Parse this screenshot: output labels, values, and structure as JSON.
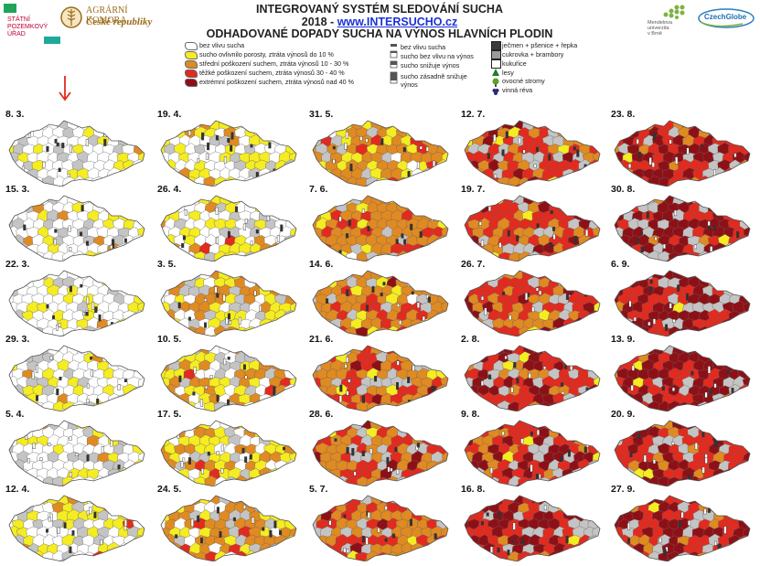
{
  "header": {
    "org1": {
      "lines": [
        "STÁTNÍ",
        "POZEMKOVÝ",
        "ÚŘAD"
      ]
    },
    "org2": {
      "line1": "AGRÁRNÍ KOMORA",
      "line2": "České republiky"
    },
    "title_line1": "INTEGROVANÝ SYSTÉM SLEDOVÁNÍ SUCHA",
    "title_year": "2018 - ",
    "title_url": "www.INTERSUCHO.cz",
    "subtitle": "ODHADOVANÉ DOPADY SUCHA NA VÝNOS HLAVNÍCH PLODIN",
    "org3": {
      "lines": [
        "Mendelova",
        "univerzita",
        "v Brně"
      ]
    },
    "org4": {
      "label": "CzechGlobe"
    }
  },
  "colors": {
    "none": "#ffffff",
    "light": "#f5ec22",
    "medium": "#e08a22",
    "heavy": "#e32a1e",
    "extreme": "#8e1017",
    "other": "#c4c4c4",
    "url": "#1a32d8"
  },
  "legend": {
    "impact": [
      {
        "label": "bez vlivu sucha",
        "color": "#ffffff"
      },
      {
        "label": "sucho ovlivnilo porosty, ztráta výnosů do 10 %",
        "color": "#f5ec22"
      },
      {
        "label": "střední poškození suchem, ztráta výnosů 10 - 30 %",
        "color": "#e08a22"
      },
      {
        "label": "těžké poškození suchem, ztráta výnosů 30 - 40 %",
        "color": "#e32a1e"
      },
      {
        "label": "extrémní poškození suchem, ztráta výnosů nad 40 %",
        "color": "#8e1017"
      }
    ],
    "bars": [
      "bez vlivu sucha",
      "sucho bez vlivu na výnos",
      "sucho snižuje výnos",
      "sucho zásadně snižuje",
      "výnos"
    ],
    "crops": [
      "ječmen + pšenice + řepka",
      "cukrovka + brambory",
      "kukuřice"
    ],
    "symbols": [
      "lesy",
      "ovocné stromy",
      "vinná réva"
    ]
  },
  "maps": [
    {
      "date": "8. 3.",
      "level": 0
    },
    {
      "date": "19. 4.",
      "level": 1
    },
    {
      "date": "31. 5.",
      "level": 3
    },
    {
      "date": "12. 7.",
      "level": 6
    },
    {
      "date": "23. 8.",
      "level": 7
    },
    {
      "date": "15. 3.",
      "level": 0
    },
    {
      "date": "26. 4.",
      "level": 1
    },
    {
      "date": "7. 6.",
      "level": 4
    },
    {
      "date": "19. 7.",
      "level": 6
    },
    {
      "date": "30. 8.",
      "level": 8
    },
    {
      "date": "22. 3.",
      "level": 0
    },
    {
      "date": "3. 5.",
      "level": 2
    },
    {
      "date": "14. 6.",
      "level": 4
    },
    {
      "date": "26. 7.",
      "level": 6
    },
    {
      "date": "6. 9.",
      "level": 8
    },
    {
      "date": "29. 3.",
      "level": 0
    },
    {
      "date": "10. 5.",
      "level": 2
    },
    {
      "date": "21. 6.",
      "level": 5
    },
    {
      "date": "2. 8.",
      "level": 7
    },
    {
      "date": "13. 9.",
      "level": 8
    },
    {
      "date": "5. 4.",
      "level": 0
    },
    {
      "date": "17. 5.",
      "level": 2
    },
    {
      "date": "28. 6.",
      "level": 5
    },
    {
      "date": "9. 8.",
      "level": 7
    },
    {
      "date": "20. 9.",
      "level": 7
    },
    {
      "date": "12. 4.",
      "level": 1
    },
    {
      "date": "24. 5.",
      "level": 3
    },
    {
      "date": "5. 7.",
      "level": 5
    },
    {
      "date": "16. 8.",
      "level": 7
    },
    {
      "date": "27. 9.",
      "level": 7
    }
  ]
}
